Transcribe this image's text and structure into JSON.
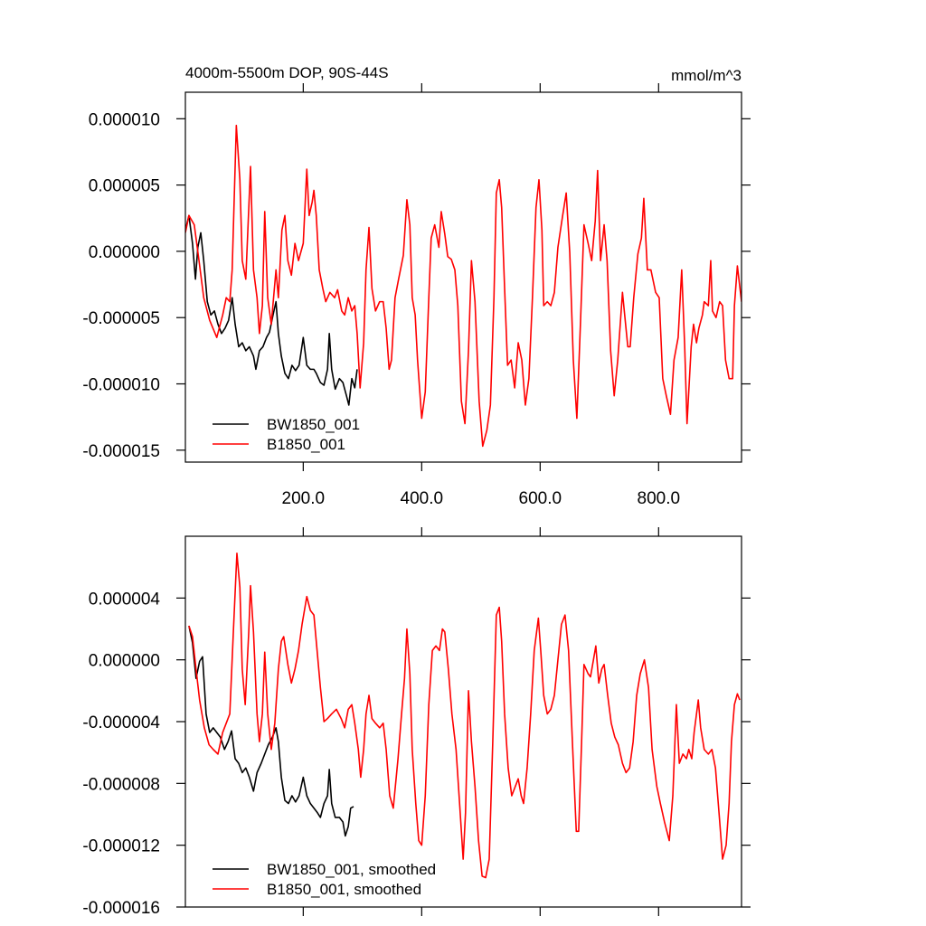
{
  "chart_data": [
    {
      "type": "line",
      "title": "4000m-5500m DOP, 90S-44S",
      "units": "mmol/m^3",
      "xlim": [
        1,
        940
      ],
      "ylim": [
        -1.59e-05,
        1.2e-05
      ],
      "xticks": [
        {
          "value": 200,
          "label": "200.0"
        },
        {
          "value": 400,
          "label": "400.0"
        },
        {
          "value": 600,
          "label": "600.0"
        },
        {
          "value": 800,
          "label": "800.0"
        }
      ],
      "yticks": [
        {
          "value": 1e-05,
          "label": "0.000010"
        },
        {
          "value": 5e-06,
          "label": "0.000005"
        },
        {
          "value": 0,
          "label": "0.000000"
        },
        {
          "value": -5e-06,
          "label": "-0.000005"
        },
        {
          "value": -1e-05,
          "label": "-0.000010"
        },
        {
          "value": -1.5e-05,
          "label": "-0.000015"
        }
      ],
      "x_tick_labels": true,
      "legend": "lower left",
      "series": [
        {
          "name": "BW1850_001",
          "color": "#000000",
          "x": [
            1,
            7,
            13,
            18,
            22,
            27,
            32,
            38,
            44,
            50,
            56,
            62,
            68,
            74,
            80,
            85,
            91,
            97,
            103,
            109,
            116,
            120,
            126,
            132,
            138,
            143,
            149,
            154,
            158,
            163,
            169,
            175,
            181,
            187,
            193,
            200,
            206,
            212,
            218,
            222,
            229,
            235,
            241,
            244,
            248,
            254,
            261,
            267,
            273,
            277,
            282,
            287,
            291
          ],
          "values": [
            1.6e-06,
            2.7e-06,
            6e-07,
            -2.1e-06,
            3e-07,
            1.4e-06,
            -7e-07,
            -3.8e-06,
            -4.8e-06,
            -4.5e-06,
            -5.5e-06,
            -6.2e-06,
            -5.8e-06,
            -5.2e-06,
            -3.5e-06,
            -5.5e-06,
            -7.2e-06,
            -6.9e-06,
            -7.5e-06,
            -7.2e-06,
            -7.9e-06,
            -8.9e-06,
            -7.5e-06,
            -7.2e-06,
            -6.5e-06,
            -6.1e-06,
            -4.8e-06,
            -3.8e-06,
            -6.2e-06,
            -7.9e-06,
            -9.2e-06,
            -9.6e-06,
            -8.6e-06,
            -9e-06,
            -8.6e-06,
            -6.5e-06,
            -8.6e-06,
            -8.9e-06,
            -8.9e-06,
            -9.2e-06,
            -9.9e-06,
            -1.01e-05,
            -8.9e-06,
            -6.2e-06,
            -8.9e-06,
            -1.04e-05,
            -9.6e-06,
            -9.9e-06,
            -1.09e-05,
            -1.16e-05,
            -9.6e-06,
            -1.03e-05,
            -8.9e-06
          ]
        },
        {
          "name": "B1850_001",
          "color": "#ff0000",
          "x": [
            1,
            7,
            16,
            24,
            32,
            42,
            54,
            64,
            70,
            76,
            80,
            87,
            93,
            97,
            103,
            111,
            116,
            122,
            126,
            131,
            135,
            140,
            146,
            154,
            158,
            164,
            169,
            174,
            180,
            186,
            192,
            200,
            206,
            210,
            215,
            218,
            222,
            227,
            233,
            238,
            245,
            253,
            258,
            265,
            270,
            276,
            282,
            287,
            291,
            296,
            302,
            306,
            311,
            316,
            322,
            329,
            335,
            340,
            345,
            349,
            355,
            361,
            369,
            375,
            380,
            384,
            389,
            393,
            400,
            406,
            412,
            416,
            422,
            429,
            433,
            439,
            444,
            450,
            456,
            461,
            467,
            473,
            479,
            484,
            490,
            497,
            503,
            510,
            516,
            522,
            526,
            531,
            535,
            540,
            545,
            551,
            557,
            563,
            569,
            575,
            581,
            587,
            593,
            598,
            603,
            606,
            612,
            618,
            624,
            630,
            638,
            644,
            650,
            656,
            662,
            668,
            674,
            681,
            687,
            693,
            697,
            702,
            708,
            713,
            719,
            725,
            731,
            739,
            748,
            752,
            758,
            765,
            771,
            775,
            781,
            787,
            795,
            801,
            807,
            813,
            820,
            826,
            833,
            839,
            844,
            848,
            855,
            859,
            864,
            868,
            874,
            877,
            884,
            888,
            891,
            897,
            903,
            908,
            913,
            919,
            925,
            928,
            933,
            940
          ],
          "values": [
            1.4e-06,
            2.7e-06,
            2e-06,
            -7e-07,
            -3.5e-06,
            -5.2e-06,
            -6.5e-06,
            -4.8e-06,
            -3.5e-06,
            -3.8e-06,
            -1.4e-06,
            9.5e-06,
            5.4e-06,
            -7e-07,
            -2.1e-06,
            6.4e-06,
            -1.4e-06,
            -3.5e-06,
            -6.2e-06,
            -4.1e-06,
            3e-06,
            -3.5e-06,
            -5.5e-06,
            -1.4e-06,
            -3.5e-06,
            1.6e-06,
            2.7e-06,
            -7e-07,
            -1.8e-06,
            6e-07,
            -7e-07,
            6e-07,
            6.2e-06,
            2.7e-06,
            3.7e-06,
            4.6e-06,
            2.7e-06,
            -1.4e-06,
            -2.8e-06,
            -3.8e-06,
            -3.1e-06,
            -3.5e-06,
            -2.9e-06,
            -4.5e-06,
            -4.8e-06,
            -3.5e-06,
            -4.5e-06,
            -4.1e-06,
            -6.2e-06,
            -1.03e-05,
            -6.9e-06,
            -1.4e-06,
            1.8e-06,
            -2.8e-06,
            -4.5e-06,
            -3.8e-06,
            -3.8e-06,
            -5.8e-06,
            -8.9e-06,
            -8.2e-06,
            -3.5e-06,
            -2.1e-06,
            -3e-07,
            3.9e-06,
            2e-06,
            -3.5e-06,
            -4.8e-06,
            -8.2e-06,
            -1.26e-05,
            -1.06e-05,
            -3.5e-06,
            1e-06,
            2e-06,
            3e-07,
            3e-06,
            1.3e-06,
            -4e-07,
            -6e-07,
            -1.4e-06,
            -4.1e-06,
            -1.13e-05,
            -1.3e-05,
            -7.5e-06,
            -7e-07,
            -3.8e-06,
            -1.13e-05,
            -1.47e-05,
            -1.35e-05,
            -1.16e-05,
            -3.5e-06,
            4.4e-06,
            5.4e-06,
            3.3e-06,
            -2.8e-06,
            -8.6e-06,
            -8.2e-06,
            -1.03e-05,
            -6.9e-06,
            -8.2e-06,
            -1.16e-05,
            -9.6e-06,
            -3.5e-06,
            3.3e-06,
            5.4e-06,
            1.6e-06,
            -4.1e-06,
            -3.8e-06,
            -4.1e-06,
            -3.1e-06,
            3e-07,
            2.7e-06,
            4.4e-06,
            -1e-07,
            -8.2e-06,
            -1.26e-05,
            -5.5e-06,
            2e-06,
            6e-07,
            -7e-07,
            2.3e-06,
            6.1e-06,
            -7e-07,
            2e-06,
            -7e-07,
            -7.5e-06,
            -1.09e-05,
            -8.2e-06,
            -3.1e-06,
            -7.2e-06,
            -7.2e-06,
            -3.5e-06,
            -2e-07,
            1e-06,
            4e-06,
            -1.4e-06,
            -1.4e-06,
            -3.1e-06,
            -3.5e-06,
            -9.6e-06,
            -1.09e-05,
            -1.23e-05,
            -8.2e-06,
            -6.5e-06,
            -1.4e-06,
            -7.1e-06,
            -1.3e-05,
            -7.2e-06,
            -5.5e-06,
            -6.9e-06,
            -5.8e-06,
            -4.8e-06,
            -3.8e-06,
            -4.1e-06,
            -7e-07,
            -4.5e-06,
            -5e-06,
            -3.8e-06,
            -4.1e-06,
            -8.2e-06,
            -9.6e-06,
            -9.6e-06,
            -4.1e-06,
            -1.1e-06,
            -3.8e-06
          ]
        }
      ]
    },
    {
      "type": "line",
      "xlim": [
        1,
        940
      ],
      "ylim": [
        -1.6e-05,
        8e-06
      ],
      "xticks": [
        200,
        400,
        600,
        800
      ],
      "yticks": [
        {
          "value": 4e-06,
          "label": "0.000004"
        },
        {
          "value": 0,
          "label": "0.000000"
        },
        {
          "value": -4e-06,
          "label": "-0.000004"
        },
        {
          "value": -8e-06,
          "label": "-0.000008"
        },
        {
          "value": -1.2e-05,
          "label": "-0.000012"
        },
        {
          "value": -1.6e-05,
          "label": "-0.000016"
        }
      ],
      "x_tick_labels": false,
      "legend": "lower left",
      "series": [
        {
          "name": "BW1850_001, smoothed",
          "color": "#000000",
          "x": [
            7,
            13,
            19,
            25,
            30,
            36,
            42,
            48,
            54,
            60,
            67,
            73,
            79,
            85,
            91,
            97,
            103,
            109,
            116,
            122,
            129,
            135,
            141,
            148,
            154,
            158,
            163,
            169,
            175,
            181,
            187,
            193,
            200,
            206,
            212,
            218,
            224,
            229,
            235,
            241,
            244,
            248,
            254,
            261,
            267,
            271,
            276,
            280,
            285
          ],
          "values": [
            2.2e-06,
            1.1e-06,
            -1.2e-06,
            -1e-07,
            2e-07,
            -3.5e-06,
            -4.7e-06,
            -4.4e-06,
            -4.7e-06,
            -5e-06,
            -5.8e-06,
            -5.3e-06,
            -4.6e-06,
            -6.4e-06,
            -6.7e-06,
            -7.3e-06,
            -7e-06,
            -7.6e-06,
            -8.5e-06,
            -7.3e-06,
            -6.7e-06,
            -6.1e-06,
            -5.5e-06,
            -5e-06,
            -4.4e-06,
            -5.3e-06,
            -7.6e-06,
            -9.1e-06,
            -9.3e-06,
            -8.8e-06,
            -9.2e-06,
            -8.8e-06,
            -7.6e-06,
            -8.8e-06,
            -9.3e-06,
            -9.6e-06,
            -9.9e-06,
            -1.02e-05,
            -9.3e-06,
            -8.8e-06,
            -7.1e-06,
            -9.3e-06,
            -1.02e-05,
            -1.02e-05,
            -1.05e-05,
            -1.14e-05,
            -1.08e-05,
            -9.6e-06,
            -9.5e-06
          ]
        },
        {
          "name": "B1850_001, smoothed",
          "color": "#ff0000",
          "x": [
            7,
            13,
            19,
            25,
            33,
            41,
            48,
            56,
            64,
            70,
            76,
            82,
            88,
            93,
            97,
            102,
            108,
            111,
            116,
            122,
            126,
            131,
            135,
            140,
            146,
            152,
            158,
            163,
            167,
            174,
            180,
            186,
            192,
            198,
            206,
            212,
            218,
            222,
            229,
            235,
            241,
            248,
            256,
            264,
            270,
            276,
            282,
            287,
            293,
            297,
            302,
            306,
            311,
            316,
            322,
            329,
            335,
            340,
            346,
            352,
            360,
            366,
            371,
            375,
            380,
            384,
            390,
            395,
            400,
            406,
            412,
            418,
            424,
            430,
            435,
            439,
            445,
            451,
            458,
            464,
            470,
            474,
            479,
            484,
            490,
            496,
            502,
            508,
            514,
            520,
            526,
            531,
            535,
            540,
            546,
            552,
            558,
            563,
            568,
            572,
            578,
            584,
            590,
            597,
            601,
            606,
            612,
            618,
            624,
            630,
            636,
            642,
            648,
            655,
            661,
            665,
            670,
            674,
            681,
            685,
            690,
            694,
            699,
            704,
            708,
            714,
            720,
            726,
            732,
            739,
            745,
            751,
            757,
            763,
            769,
            776,
            783,
            789,
            797,
            803,
            810,
            818,
            824,
            830,
            835,
            841,
            847,
            851,
            856,
            860,
            867,
            871,
            877,
            884,
            890,
            896,
            902,
            908,
            914,
            919,
            923,
            928,
            933,
            937
          ],
          "values": [
            2.2e-06,
            1.5e-06,
            -6e-07,
            -2.6e-06,
            -4.4e-06,
            -5.5e-06,
            -5.8e-06,
            -6.1e-06,
            -4.7e-06,
            -4.1e-06,
            -3.5e-06,
            1.8e-06,
            6.9e-06,
            4.7e-06,
            -6e-07,
            -2.9e-06,
            1.8e-06,
            4.8e-06,
            1.8e-06,
            -3.5e-06,
            -5.3e-06,
            -3.5e-06,
            5e-07,
            -3.5e-06,
            -5.8e-06,
            -4.1e-06,
            -6e-07,
            1.2e-06,
            1.5e-06,
            -3e-07,
            -1.5e-06,
            -6e-07,
            6e-07,
            2.3e-06,
            4.1e-06,
            3.2e-06,
            2.9e-06,
            1.2e-06,
            -1.8e-06,
            -4e-06,
            -3.8e-06,
            -3.5e-06,
            -3.2e-06,
            -3.8e-06,
            -4.4e-06,
            -3.2e-06,
            -2.9e-06,
            -4.1e-06,
            -5.8e-06,
            -7.6e-06,
            -5.8e-06,
            -3.5e-06,
            -2.3e-06,
            -3.8e-06,
            -4.1e-06,
            -4.4e-06,
            -4.1e-06,
            -5.8e-06,
            -8.8e-06,
            -9.6e-06,
            -6.4e-06,
            -3.5e-06,
            -1.2e-06,
            2e-06,
            -9e-07,
            -5.8e-06,
            -9.3e-06,
            -1.17e-05,
            -1.2e-05,
            -8.8e-06,
            -2.9e-06,
            6e-07,
            9e-07,
            6e-07,
            2e-06,
            1.8e-06,
            -6e-07,
            -3.5e-06,
            -5.8e-06,
            -9.3e-06,
            -1.29e-05,
            -9.9e-06,
            -2e-06,
            -5.3e-06,
            -8.2e-06,
            -1.17e-05,
            -1.4e-05,
            -1.41e-05,
            -1.29e-05,
            -5.3e-06,
            2.9e-06,
            3.4e-06,
            1.2e-06,
            -3.5e-06,
            -7e-06,
            -8.8e-06,
            -8.2e-06,
            -7.7e-06,
            -8.8e-06,
            -9.3e-06,
            -7e-06,
            -3.5e-06,
            6e-07,
            2.7e-06,
            6e-07,
            -2.3e-06,
            -3.5e-06,
            -3.2e-06,
            -2.3e-06,
            0,
            2.3e-06,
            2.9e-06,
            6e-07,
            -5.8e-06,
            -1.11e-05,
            -1.11e-05,
            -5.3e-06,
            -3e-07,
            -9e-07,
            -1.1e-06,
            0,
            9e-07,
            -1.5e-06,
            -6e-07,
            -3e-07,
            -2.3e-06,
            -4.1e-06,
            -5e-06,
            -5.5e-06,
            -6.7e-06,
            -7.3e-06,
            -7e-06,
            -5.3e-06,
            -2.3e-06,
            -9e-07,
            0,
            -1.8e-06,
            -5.8e-06,
            -8.2e-06,
            -9.3e-06,
            -1.05e-05,
            -1.17e-05,
            -8.8e-06,
            -2.9e-06,
            -6.7e-06,
            -6.1e-06,
            -6.4e-06,
            -5.8e-06,
            -6.4e-06,
            -4.7e-06,
            -2.6e-06,
            -4.4e-06,
            -5.8e-06,
            -6.1e-06,
            -5.8e-06,
            -7e-06,
            -9.9e-06,
            -1.29e-05,
            -1.2e-05,
            -9.3e-06,
            -5.3e-06,
            -2.9e-06,
            -2.2e-06,
            -2.6e-06
          ]
        }
      ]
    }
  ]
}
